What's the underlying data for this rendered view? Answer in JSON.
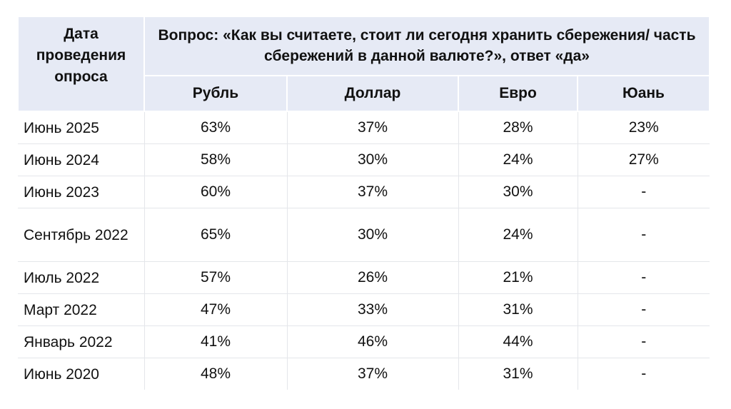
{
  "table": {
    "date_header": "Дата проведения опроса",
    "question_header": "Вопрос: «Как вы считаете, стоит ли сегодня хранить сбережения/ часть сбережений в данной валюте?», ответ «да»",
    "currencies": [
      "Рубль",
      "Доллар",
      "Евро",
      "Юань"
    ],
    "rows": [
      {
        "date": "Июнь 2025",
        "values": [
          "63%",
          "37%",
          "28%",
          "23%"
        ]
      },
      {
        "date": "Июнь 2024",
        "values": [
          "58%",
          "30%",
          "24%",
          "27%"
        ]
      },
      {
        "date": "Июнь 2023",
        "values": [
          "60%",
          "37%",
          "30%",
          "-"
        ]
      },
      {
        "date": "Сентябрь 2022",
        "values": [
          "65%",
          "30%",
          "24%",
          "-"
        ]
      },
      {
        "date": "Июль 2022",
        "values": [
          "57%",
          "26%",
          "21%",
          "-"
        ]
      },
      {
        "date": "Март 2022",
        "values": [
          "47%",
          "33%",
          "31%",
          "-"
        ]
      },
      {
        "date": "Январь 2022",
        "values": [
          "41%",
          "46%",
          "44%",
          "-"
        ]
      },
      {
        "date": "Июнь 2020",
        "values": [
          "48%",
          "37%",
          "31%",
          "-"
        ]
      }
    ]
  },
  "colors": {
    "header_background": "#e6eaf5",
    "grid_line": "#e4e6ea",
    "text": "#111111"
  }
}
